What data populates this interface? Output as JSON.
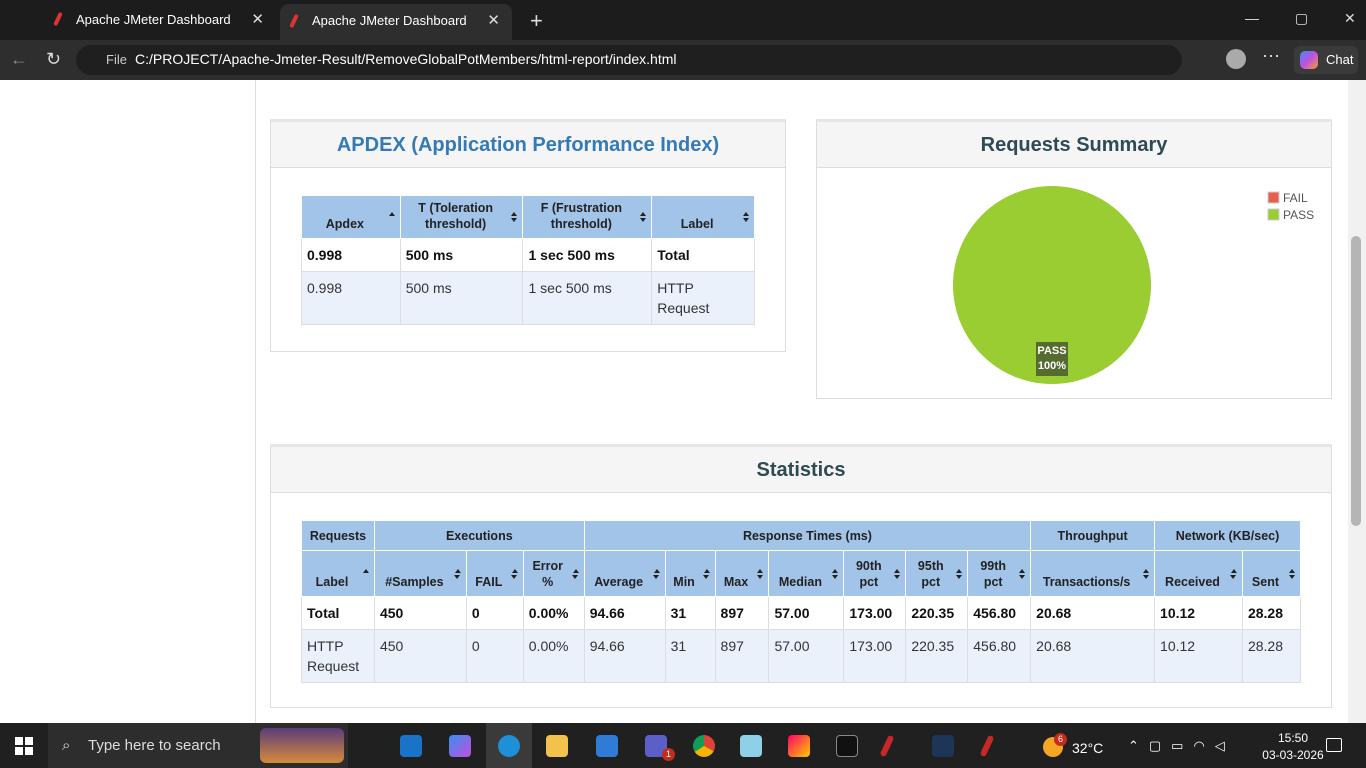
{
  "browser": {
    "tabs": [
      "Apache JMeter Dashboard",
      "Apache JMeter Dashboard"
    ],
    "address_label": "File",
    "url": "C:/PROJECT/Apache-Jmeter-Result/RemoveGlobalPotMembers/html-report/index.html",
    "chat": "Chat"
  },
  "apdex": {
    "title": "APDEX (Application Performance Index)",
    "columns": [
      "Apdex",
      "T (Toleration threshold)",
      "F (Frustration threshold)",
      "Label"
    ],
    "rows": [
      [
        "0.998",
        "500 ms",
        "1 sec 500 ms",
        "Total"
      ],
      [
        "0.998",
        "500 ms",
        "1 sec 500 ms",
        "HTTP Request"
      ]
    ]
  },
  "requests_summary": {
    "title": "Requests Summary",
    "slices": [
      {
        "name": "FAIL",
        "value": 0,
        "color": "#e8604c"
      },
      {
        "name": "PASS",
        "value": 100,
        "value_label": "100%",
        "color": "#9acd32"
      }
    ]
  },
  "statistics": {
    "title": "Statistics",
    "groups": [
      "Requests",
      "Executions",
      "Response Times (ms)",
      "Throughput",
      "Network (KB/sec)"
    ],
    "columns": [
      "Label",
      "#Samples",
      "FAIL",
      "Error %",
      "Average",
      "Min",
      "Max",
      "Median",
      "90th pct",
      "95th pct",
      "99th pct",
      "Transactions/s",
      "Received",
      "Sent"
    ],
    "rows": [
      [
        "Total",
        "450",
        "0",
        "0.00%",
        "94.66",
        "31",
        "897",
        "57.00",
        "173.00",
        "220.35",
        "456.80",
        "20.68",
        "10.12",
        "28.28"
      ],
      [
        "HTTP Request",
        "450",
        "0",
        "0.00%",
        "94.66",
        "31",
        "897",
        "57.00",
        "173.00",
        "220.35",
        "456.80",
        "20.68",
        "10.12",
        "28.28"
      ]
    ]
  },
  "taskbar": {
    "search": "Type here to search",
    "weather_badge": "6",
    "teams_badge": "1",
    "temperature": "32°C",
    "time": "15:50",
    "date": "03-03-2026"
  }
}
